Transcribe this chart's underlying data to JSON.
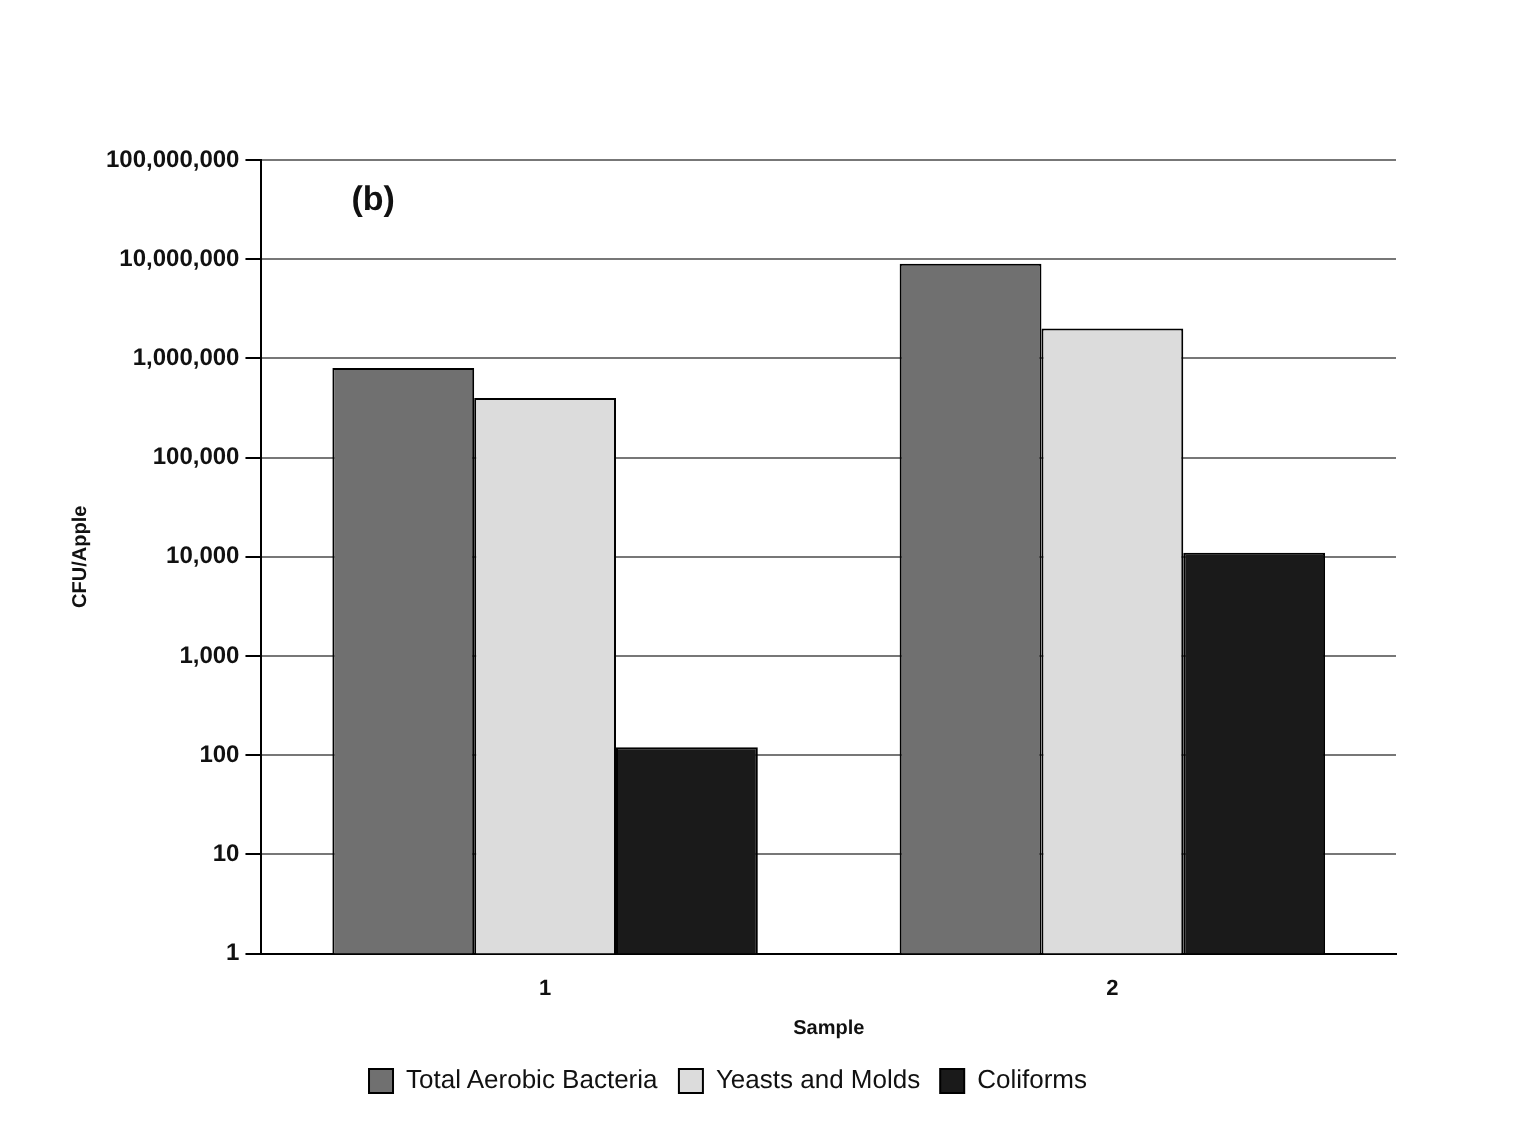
{
  "chart_data": {
    "type": "bar",
    "xlabel": "Sample",
    "ylabel": "CFU/Apple",
    "categories": [
      "1",
      "2"
    ],
    "series": [
      {
        "name": "Total Aerobic Bacteria",
        "color": "#707070",
        "values": [
          800000,
          9000000
        ]
      },
      {
        "name": "Yeasts and Molds",
        "color": "#dcdcdc",
        "values": [
          400000,
          2000000
        ]
      },
      {
        "name": "Coliforms",
        "color": "#1a1a1a",
        "values": [
          120,
          11000
        ]
      }
    ],
    "log": true,
    "ylim": [
      1,
      100000000
    ],
    "yticks": [
      1,
      10,
      100,
      {
        "value": 1000,
        "label": "1,000"
      },
      {
        "value": 10000,
        "label": "10,000"
      },
      {
        "value": 100000,
        "label": "100,000"
      },
      {
        "value": 1000000,
        "label": "1,000,000"
      },
      {
        "value": 10000000,
        "label": "10,000,000"
      },
      {
        "value": 100000000,
        "label": "100,000,000"
      }
    ],
    "grid": "y",
    "legend": "bottom",
    "annotations": [
      "(b)"
    ]
  }
}
